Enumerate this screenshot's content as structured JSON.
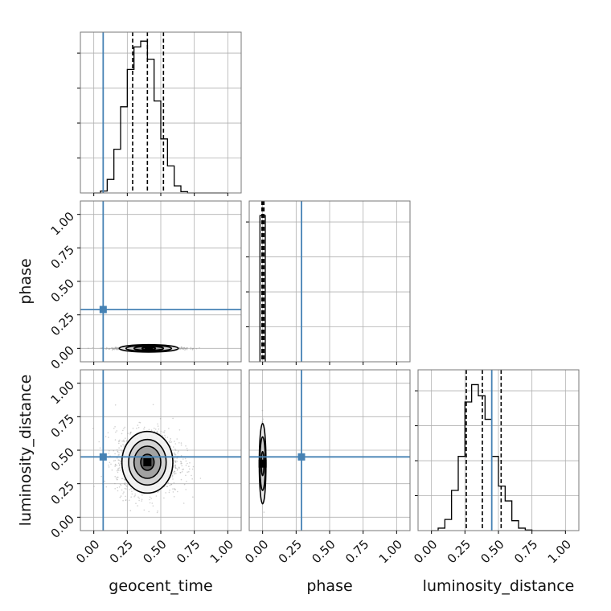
{
  "chart_data": {
    "type": "corner",
    "parameters": [
      "geocent_time",
      "phase",
      "luminosity_distance"
    ],
    "axis_labels": {
      "x": [
        "geocent_time",
        "phase",
        "luminosity_distance"
      ],
      "y": [
        "phase",
        "luminosity_distance"
      ]
    },
    "tick_values": [
      0.0,
      0.25,
      0.5,
      0.75,
      1.0
    ],
    "tick_labels": [
      "0.00",
      "0.25",
      "0.50",
      "0.75",
      "1.00"
    ],
    "axis_range": [
      -0.1,
      1.1
    ],
    "grid": true,
    "colors": {
      "truth": "#4682b4",
      "hist": "#000000",
      "points": "#9a9a9a"
    },
    "truths": {
      "geocent_time": 0.07,
      "phase": 0.29,
      "luminosity_distance": 0.45
    },
    "histograms": {
      "geocent_time": {
        "bin_edges": [
          0.0,
          0.05,
          0.1,
          0.15,
          0.2,
          0.25,
          0.3,
          0.35,
          0.4,
          0.45,
          0.5,
          0.55,
          0.6,
          0.65,
          0.7,
          0.75,
          0.8,
          0.85,
          0.9,
          0.95,
          1.0
        ],
        "counts": [
          0,
          0.3,
          2.1,
          6.8,
          13.4,
          19.2,
          22.7,
          23.6,
          20.8,
          14.3,
          8.4,
          4.2,
          1.1,
          0.2,
          0,
          0,
          0,
          0,
          0,
          0
        ],
        "quantiles": [
          0.29,
          0.4,
          0.52
        ],
        "y_max": 25
      },
      "phase": {
        "bin_edges": [
          -0.02,
          0.02
        ],
        "counts": [
          1
        ],
        "quantiles": [
          -0.005,
          0.0,
          0.01
        ],
        "y_max": 1.1
      },
      "luminosity_distance": {
        "bin_edges": [
          0.0,
          0.05,
          0.1,
          0.15,
          0.2,
          0.25,
          0.3,
          0.35,
          0.4,
          0.45,
          0.5,
          0.55,
          0.6,
          0.65,
          0.7,
          0.75,
          0.8,
          0.85,
          0.9,
          0.95,
          1.0
        ],
        "counts": [
          0,
          0.4,
          1.8,
          6.5,
          12.0,
          20.8,
          23.6,
          21.8,
          18.0,
          12.0,
          7.2,
          4.8,
          1.6,
          0.4,
          0.1,
          0,
          0,
          0,
          0,
          0
        ],
        "quantiles": [
          0.26,
          0.38,
          0.52
        ],
        "y_max": 26
      }
    },
    "joint": [
      {
        "x": "geocent_time",
        "y": "phase",
        "center": [
          0.41,
          0.0
        ],
        "spread": [
          0.12,
          0.005
        ],
        "contours": [
          [
            0.05,
            0.01
          ],
          [
            0.11,
            0.015
          ],
          [
            0.17,
            0.022
          ],
          [
            0.22,
            0.028
          ]
        ]
      },
      {
        "x": "geocent_time",
        "y": "luminosity_distance",
        "center": [
          0.4,
          0.41
        ],
        "spread": [
          0.12,
          0.12
        ],
        "contours": [
          [
            0.05,
            0.06
          ],
          [
            0.1,
            0.12
          ],
          [
            0.14,
            0.17
          ],
          [
            0.19,
            0.23
          ]
        ]
      },
      {
        "x": "phase",
        "y": "luminosity_distance",
        "center": [
          0.0,
          0.4
        ],
        "spread": [
          0.004,
          0.12
        ],
        "contours": [
          [
            0.01,
            0.09
          ],
          [
            0.02,
            0.2
          ],
          [
            0.025,
            0.3
          ]
        ]
      }
    ]
  }
}
